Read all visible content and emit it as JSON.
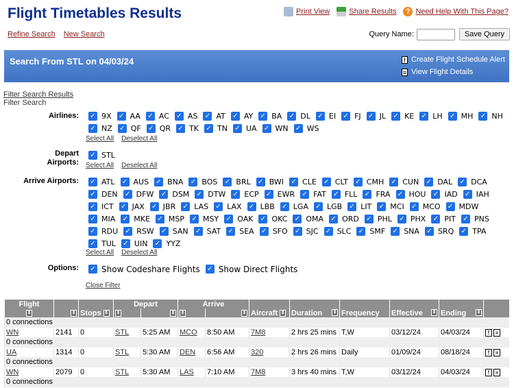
{
  "header": {
    "title": "Flight Timetables Results",
    "print_view": "Print View",
    "share_results": "Share Results",
    "help": "Need Help With This Page?",
    "refine_search": "Refine Search",
    "new_search": "New Search",
    "query_name_label": "Query Name:",
    "query_name_value": "",
    "save_query": "Save Query"
  },
  "banner": {
    "title": "Search From STL on 04/03/24",
    "create_alert": "Create Flight Schedule Alert",
    "view_details": "View Flight Details"
  },
  "filter": {
    "toggle_link": "Filter Search Results",
    "heading": "Filter Search",
    "airlines_label": "Airlines:",
    "depart_label_1": "Depart",
    "depart_label_2": "Airports:",
    "arrive_label": "Arrive Airports:",
    "options_label": "Options:",
    "select_all": "Select All",
    "deselect_all": "Deselect All",
    "close_filter": "Close Filter",
    "airlines": [
      "9X",
      "AA",
      "AC",
      "AS",
      "AT",
      "AY",
      "BA",
      "DL",
      "EI",
      "FJ",
      "JL",
      "KE",
      "LH",
      "MH",
      "NH",
      "NZ",
      "QF",
      "QR",
      "TK",
      "TN",
      "UA",
      "WN",
      "WS"
    ],
    "depart_airports": [
      "STL"
    ],
    "arrive_airports": [
      "ATL",
      "AUS",
      "BNA",
      "BOS",
      "BRL",
      "BWI",
      "CLE",
      "CLT",
      "CMH",
      "CUN",
      "DAL",
      "DCA",
      "DEN",
      "DFW",
      "DSM",
      "DTW",
      "ECP",
      "EWR",
      "FAT",
      "FLL",
      "FRA",
      "HOU",
      "IAD",
      "IAH",
      "ICT",
      "JAX",
      "JBR",
      "LAS",
      "LAX",
      "LBB",
      "LGA",
      "LGB",
      "LIT",
      "MCI",
      "MCO",
      "MDW",
      "MIA",
      "MKE",
      "MSP",
      "MSY",
      "OAK",
      "OKC",
      "OMA",
      "ORD",
      "PHL",
      "PHX",
      "PIT",
      "PNS",
      "RDU",
      "RSW",
      "SAN",
      "SAT",
      "SEA",
      "SFO",
      "SJC",
      "SLC",
      "SMF",
      "SNA",
      "SRQ",
      "TPA",
      "TUL",
      "UIN",
      "YYZ"
    ],
    "options": [
      "Show Codeshare Flights",
      "Show Direct Flights"
    ]
  },
  "table": {
    "headers": {
      "flight": "Flight",
      "stops": "Stops",
      "depart": "Depart",
      "arrive": "Arrive",
      "aircraft": "Aircraft",
      "duration": "Duration",
      "frequency": "Frequency",
      "effective": "Effective",
      "ending": "Ending"
    },
    "connections_text": "0 connections",
    "rows": [
      {
        "airline": "WN",
        "flight": "2141",
        "stops": "0",
        "dep": "STL",
        "dep_time": "5:25 AM",
        "arr": "MCO",
        "arr_time": "8:50 AM",
        "aircraft": "7M8",
        "duration": "2 hrs 25 mins",
        "frequency": "T,W",
        "effective": "03/12/24",
        "ending": "04/03/24"
      },
      {
        "airline": "UA",
        "flight": "1314",
        "stops": "0",
        "dep": "STL",
        "dep_time": "5:30 AM",
        "arr": "DEN",
        "arr_time": "6:56 AM",
        "aircraft": "320",
        "duration": "2 hrs 26 mins",
        "frequency": "Daily",
        "effective": "01/09/24",
        "ending": "08/18/24"
      },
      {
        "airline": "WN",
        "flight": "2079",
        "stops": "0",
        "dep": "STL",
        "dep_time": "5:30 AM",
        "arr": "LAS",
        "arr_time": "7:10 AM",
        "aircraft": "7M8",
        "duration": "3 hrs 40 mins",
        "frequency": "T,W",
        "effective": "03/12/24",
        "ending": "04/03/24"
      }
    ]
  },
  "colors": {
    "title": "#0d2f8f",
    "banner": "#4a7ecb",
    "checkbox": "#1f6fe5",
    "link": "#8b1a1a",
    "table_header": "#8f8f8f"
  }
}
